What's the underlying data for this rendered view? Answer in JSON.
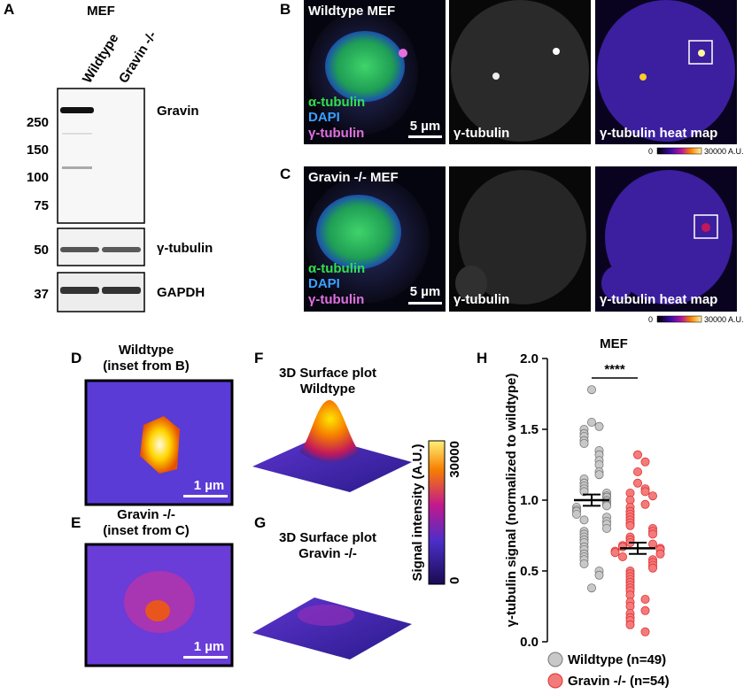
{
  "panel_letters": [
    "A",
    "B",
    "C",
    "D",
    "E",
    "F",
    "G",
    "H"
  ],
  "blot": {
    "title": "MEF",
    "lanes": [
      "Wildtype",
      "Gravin -/-"
    ],
    "markers": [
      "250",
      "150",
      "100",
      "75",
      "50",
      "37"
    ],
    "bands": [
      "Gravin",
      "γ-tubulin",
      "GAPDH"
    ]
  },
  "panel_b": {
    "overlay_title": "Wildtype MEF",
    "channels": [
      "α-tubulin",
      "DAPI",
      "γ-tubulin"
    ],
    "scale_bar": "5 µm",
    "mid_label": "γ-tubulin",
    "right_label": "γ-tubulin heat map",
    "colorbar_min": "0",
    "colorbar_max": "30000 A.U."
  },
  "panel_c": {
    "overlay_title": "Gravin -/- MEF",
    "channels": [
      "α-tubulin",
      "DAPI",
      "γ-tubulin"
    ],
    "scale_bar": "5 µm",
    "mid_label": "γ-tubulin",
    "right_label": "γ-tubulin heat map",
    "colorbar_min": "0",
    "colorbar_max": "30000 A.U."
  },
  "panel_d": {
    "title": [
      "Wildtype",
      "(inset from B)"
    ],
    "scale_bar": "1 µm"
  },
  "panel_e": {
    "title": [
      "Gravin -/-",
      "(inset from C)"
    ],
    "scale_bar": "1 µm"
  },
  "panel_f": {
    "title": [
      "3D Surface plot",
      "Wildtype"
    ]
  },
  "panel_g": {
    "title": [
      "3D Surface plot",
      "Gravin -/-"
    ]
  },
  "surface_colorbar": {
    "label": "Signal intensity (A.U.)",
    "max": "30000",
    "min": "0"
  },
  "chart_data": {
    "type": "strip",
    "title": "MEF",
    "ylabel": "γ-tubulin signal (normalized to wildtype)",
    "annotation": "****",
    "ylim": [
      0,
      2
    ],
    "yticks": [
      {
        "value": 0,
        "label": "0.0"
      },
      {
        "value": 0.5,
        "label": "0.5"
      },
      {
        "value": 1,
        "label": "1.0"
      },
      {
        "value": 1.5,
        "label": "1.5"
      },
      {
        "value": 2,
        "label": "2.0"
      }
    ],
    "series": [
      {
        "name": "Wildtype (n=49)",
        "color": "#c8c8c8",
        "mean": 1.0,
        "sem": 0.04,
        "values": [
          1.78,
          1.55,
          1.52,
          1.5,
          1.47,
          1.45,
          1.42,
          1.4,
          1.35,
          1.32,
          1.28,
          1.25,
          1.2,
          1.18,
          1.15,
          1.12,
          1.1,
          1.08,
          1.06,
          1.05,
          1.03,
          1.02,
          1.0,
          0.99,
          0.97,
          0.96,
          0.95,
          0.93,
          0.92,
          0.9,
          0.88,
          0.86,
          0.85,
          0.83,
          0.8,
          0.78,
          0.76,
          0.74,
          0.72,
          0.7,
          0.67,
          0.65,
          0.62,
          0.6,
          0.58,
          0.55,
          0.5,
          0.47,
          0.38
        ]
      },
      {
        "name": "Gravin -/- (n=54)",
        "color": "#f47b7b",
        "mean": 0.66,
        "sem": 0.04,
        "values": [
          1.32,
          1.27,
          1.2,
          1.12,
          1.08,
          1.06,
          1.05,
          1.03,
          1.0,
          0.97,
          0.95,
          0.92,
          0.9,
          0.88,
          0.86,
          0.84,
          0.82,
          0.8,
          0.78,
          0.76,
          0.74,
          0.72,
          0.7,
          0.69,
          0.68,
          0.67,
          0.66,
          0.65,
          0.64,
          0.63,
          0.62,
          0.6,
          0.58,
          0.56,
          0.54,
          0.52,
          0.5,
          0.48,
          0.46,
          0.44,
          0.42,
          0.4,
          0.38,
          0.36,
          0.33,
          0.3,
          0.28,
          0.25,
          0.22,
          0.2,
          0.17,
          0.15,
          0.12,
          0.07
        ]
      }
    ]
  }
}
